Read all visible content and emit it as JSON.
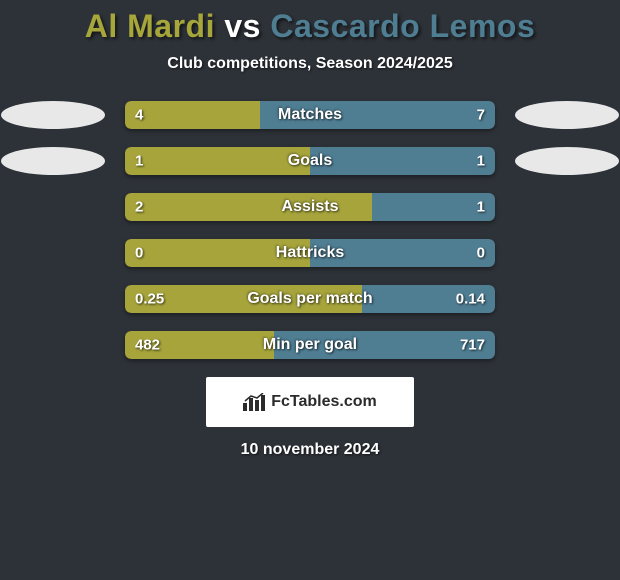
{
  "title": {
    "player1": "Al Mardi",
    "vs": "vs",
    "player2": "Cascardo Lemos",
    "color1": "#a6a63a",
    "color_vs": "#ffffff",
    "color2": "#4f7d92"
  },
  "subtitle": "Club competitions, Season 2024/2025",
  "colors": {
    "left": "#a6a43b",
    "right": "#4f7d92",
    "ellipse": "#e8e8e8",
    "background": "#2d3238"
  },
  "rows": [
    {
      "label": "Matches",
      "left_val": "4",
      "right_val": "7",
      "left_pct": 36.4,
      "show_left_ellipse": true,
      "show_right_ellipse": true
    },
    {
      "label": "Goals",
      "left_val": "1",
      "right_val": "1",
      "left_pct": 50.0,
      "show_left_ellipse": true,
      "show_right_ellipse": true
    },
    {
      "label": "Assists",
      "left_val": "2",
      "right_val": "1",
      "left_pct": 66.7,
      "show_left_ellipse": false,
      "show_right_ellipse": false
    },
    {
      "label": "Hattricks",
      "left_val": "0",
      "right_val": "0",
      "left_pct": 50.0,
      "show_left_ellipse": false,
      "show_right_ellipse": false
    },
    {
      "label": "Goals per match",
      "left_val": "0.25",
      "right_val": "0.14",
      "left_pct": 64.1,
      "show_left_ellipse": false,
      "show_right_ellipse": false
    },
    {
      "label": "Min per goal",
      "left_val": "482",
      "right_val": "717",
      "left_pct": 40.2,
      "show_left_ellipse": false,
      "show_right_ellipse": false
    }
  ],
  "badge": {
    "text": "FcTables.com"
  },
  "date": "10 november 2024"
}
